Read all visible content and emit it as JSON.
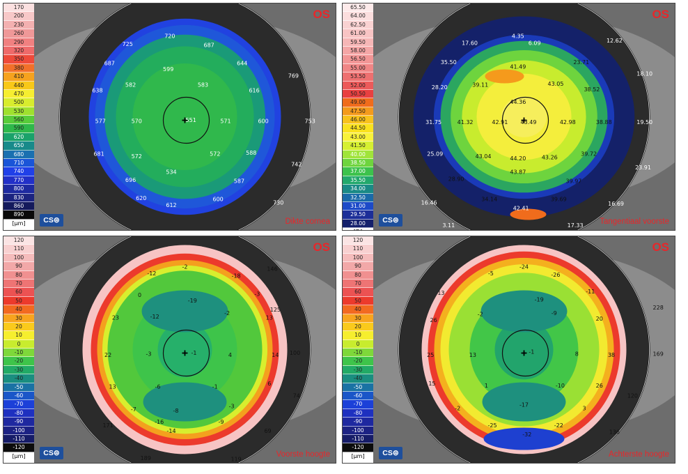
{
  "panels": [
    {
      "eye": "OS",
      "title": "Dikte cornea",
      "unit": "[µm]",
      "logo": "CS⊜",
      "scale": [
        "170",
        "200",
        "230",
        "260",
        "290",
        "320",
        "350",
        "380",
        "410",
        "440",
        "470",
        "500",
        "530",
        "560",
        "590",
        "620",
        "650",
        "680",
        "710",
        "740",
        "770",
        "800",
        "830",
        "860",
        "890"
      ],
      "values": [
        "720",
        "725",
        "687",
        "687",
        "644",
        "769",
        "599",
        "638",
        "582",
        "583",
        "616",
        "577",
        "570",
        "551",
        "571",
        "600",
        "753",
        "681",
        "572",
        "572",
        "588",
        "742",
        "534",
        "696",
        "587",
        "620",
        "612",
        "600",
        "730"
      ]
    },
    {
      "eye": "OS",
      "title": "Tangentiaal voorste",
      "unit": "[D]",
      "logo": "CS⊜",
      "scale": [
        "65.50",
        "64.00",
        "62.50",
        "61.00",
        "59.50",
        "58.00",
        "56.50",
        "55.00",
        "53.50",
        "52.00",
        "50.50",
        "49.00",
        "47.50",
        "46.00",
        "44.50",
        "43.00",
        "41.50",
        "40.00",
        "38.50",
        "37.00",
        "35.50",
        "34.00",
        "32.50",
        "31.00",
        "29.50",
        "28.00"
      ],
      "values": [
        "4.35",
        "17.60",
        "6.09",
        "12.62",
        "35.50",
        "41.49",
        "23.71",
        "18.10",
        "28.20",
        "39.11",
        "43.05",
        "38.52",
        "44.36",
        "31.75",
        "41.32",
        "42.91",
        "43.49",
        "42.98",
        "38.88",
        "19.50",
        "44.20",
        "25.09",
        "43.04",
        "43.26",
        "39.72",
        "23.91",
        "28.90",
        "43.87",
        "39.97",
        "16.46",
        "34.14",
        "39.69",
        "42.41",
        "16.69",
        "3.11",
        "17.33"
      ]
    },
    {
      "eye": "OS",
      "title": "Voorste hoogte",
      "unit": "[µm]",
      "logo": "CS⊜",
      "scale": [
        "120",
        "110",
        "100",
        "90",
        "80",
        "70",
        "60",
        "50",
        "40",
        "30",
        "20",
        "10",
        "0",
        "-10",
        "-20",
        "-30",
        "-40",
        "-50",
        "-60",
        "-70",
        "-80",
        "-90",
        "-100",
        "-110",
        "-120"
      ],
      "values": [
        "-2",
        "-12",
        "-18",
        "146",
        "0",
        "-3",
        "-19",
        "125",
        "23",
        "-12",
        "-2",
        "13",
        "22",
        "-3",
        "-1",
        "4",
        "14",
        "100",
        "13",
        "-6",
        "-1",
        "6",
        "74",
        "-7",
        "-8",
        "-3",
        "171",
        "-16",
        "-9",
        "-14",
        "69",
        "189",
        "119"
      ]
    },
    {
      "eye": "OS",
      "title": "Achterste hoogte",
      "unit": "[µm]",
      "logo": "CS⊜",
      "scale": [
        "120",
        "110",
        "100",
        "90",
        "80",
        "70",
        "60",
        "50",
        "40",
        "30",
        "20",
        "10",
        "0",
        "-10",
        "-20",
        "-30",
        "-40",
        "-50",
        "-60",
        "-70",
        "-80",
        "-90",
        "-100",
        "-110",
        "-120"
      ],
      "values": [
        "-24",
        "-5",
        "-26",
        "13",
        "-11",
        "228",
        "-19",
        "26",
        "-2",
        "-9",
        "20",
        "25",
        "13",
        "-1",
        "8",
        "38",
        "169",
        "15",
        "1",
        "-10",
        "26",
        "120",
        "-2",
        "-17",
        "3",
        "-25",
        "-22",
        "136",
        "-32"
      ]
    }
  ],
  "colors": {
    "accent": "#e8262a",
    "logo": "#1e4f9c"
  }
}
